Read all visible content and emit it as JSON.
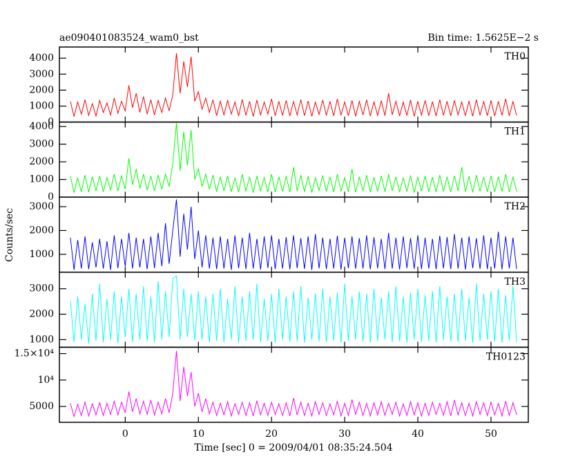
{
  "chart_data": {
    "type": "line",
    "title": "ae090401083524_wam0_bst",
    "subtitle": "Bin time: 1.5625E−2 s",
    "xlabel": "Time [sec] 0 = 2009/04/01 08:35:24.504",
    "ylabel": "Counts/sec",
    "xlim": [
      -9,
      55.1
    ],
    "xticks": [
      0,
      10,
      20,
      30,
      40,
      50
    ],
    "x": [
      -7.5,
      -7,
      -6.5,
      -6,
      -5.5,
      -5,
      -4.5,
      -4,
      -3.5,
      -3,
      -2.5,
      -2,
      -1.5,
      -1,
      -0.5,
      0,
      0.5,
      1,
      1.5,
      2,
      2.5,
      3,
      3.5,
      4,
      4.5,
      5,
      5.5,
      6,
      6.5,
      7,
      7.5,
      8,
      8.5,
      9,
      9.5,
      10,
      10.5,
      11,
      11.5,
      12,
      12.5,
      13,
      13.5,
      14,
      14.5,
      15,
      15.5,
      16,
      16.5,
      17,
      17.5,
      18,
      18.5,
      19,
      19.5,
      20,
      20.5,
      21,
      21.5,
      22,
      22.5,
      23,
      23.5,
      24,
      24.5,
      25,
      25.5,
      26,
      26.5,
      27,
      27.5,
      28,
      28.5,
      29,
      29.5,
      30,
      30.5,
      31,
      31.5,
      32,
      32.5,
      33,
      33.5,
      34,
      34.5,
      35,
      35.5,
      36,
      36.5,
      37,
      37.5,
      38,
      38.5,
      39,
      39.5,
      40,
      40.5,
      41,
      41.5,
      42,
      42.5,
      43,
      43.5,
      44,
      44.5,
      45,
      45.5,
      46,
      46.5,
      47,
      47.5,
      48,
      48.5,
      49,
      49.5,
      50,
      50.5,
      51,
      51.5,
      52,
      52.5,
      53,
      53.5
    ],
    "series": [
      {
        "name": "TH0",
        "color": "#ff0000",
        "ylim": [
          0,
          4700
        ],
        "yticks": [
          0,
          1000,
          2000,
          3000,
          4000
        ],
        "values": [
          1300,
          350,
          1250,
          500,
          1400,
          420,
          1150,
          380,
          1350,
          600,
          1200,
          450,
          1500,
          550,
          1300,
          700,
          2300,
          900,
          1800,
          600,
          1600,
          500,
          1400,
          450,
          1350,
          600,
          1500,
          700,
          1700,
          4300,
          1800,
          3800,
          2200,
          4100,
          1300,
          1900,
          800,
          1500,
          600,
          1400,
          400,
          1300,
          450,
          1350,
          500,
          1250,
          380,
          1420,
          420,
          1300,
          350,
          1380,
          450,
          1250,
          500,
          1450,
          400,
          1300,
          420,
          1350,
          380,
          1280,
          450,
          1400,
          400,
          1320,
          360,
          1250,
          480,
          1380,
          420,
          1300,
          390,
          1450,
          430,
          1260,
          400,
          1350,
          370,
          1300,
          450,
          1400,
          380,
          1270,
          420,
          1340,
          400,
          1800,
          450,
          1300,
          380,
          1250,
          410,
          1380,
          360,
          1300,
          440,
          1350,
          400,
          1280,
          380,
          1400,
          420,
          1300,
          390,
          1350,
          450,
          1260,
          400,
          1320,
          370,
          1400,
          430,
          1280,
          400,
          1350,
          380,
          1300,
          420,
          1450,
          390,
          1300,
          410
        ]
      },
      {
        "name": "TH1",
        "color": "#00ff00",
        "ylim": [
          0,
          4250
        ],
        "yticks": [
          0,
          1000,
          2000,
          3000,
          4000
        ],
        "values": [
          1200,
          250,
          1100,
          300,
          1250,
          280,
          1150,
          350,
          1200,
          300,
          1100,
          400,
          1300,
          350,
          1200,
          450,
          2200,
          700,
          1600,
          500,
          1300,
          400,
          1200,
          350,
          1250,
          450,
          1300,
          600,
          1900,
          4200,
          1500,
          3700,
          1800,
          3800,
          1000,
          1600,
          600,
          1300,
          450,
          1250,
          300,
          1150,
          350,
          1200,
          300,
          1100,
          280,
          1300,
          320,
          1150,
          250,
          1200,
          350,
          1100,
          300,
          1300,
          280,
          1150,
          320,
          1200,
          280,
          1700,
          350,
          1250,
          300,
          1180,
          260,
          1100,
          380,
          1230,
          320,
          1150,
          290,
          1300,
          330,
          1100,
          300,
          1600,
          270,
          1150,
          350,
          1250,
          280,
          1120,
          320,
          1200,
          300,
          1300,
          350,
          1150,
          280,
          1100,
          310,
          1230,
          260,
          1150,
          340,
          1200,
          300,
          1130,
          280,
          1250,
          320,
          1150,
          290,
          1200,
          350,
          1700,
          300,
          1180,
          270,
          1250,
          330,
          1130,
          300,
          1200,
          280,
          1150,
          320,
          1300,
          290,
          1150,
          310
        ]
      },
      {
        "name": "TH2",
        "color": "#0000ff",
        "ylim": [
          250,
          3400
        ],
        "yticks": [
          1000,
          2000,
          3000
        ],
        "values": [
          1700,
          350,
          1600,
          400,
          1750,
          380,
          1500,
          450,
          1650,
          400,
          1550,
          350,
          1800,
          420,
          1650,
          500,
          1900,
          400,
          1700,
          450,
          1650,
          380,
          1750,
          420,
          1900,
          500,
          2300,
          600,
          2000,
          3300,
          900,
          2700,
          1200,
          3000,
          800,
          2000,
          450,
          1800,
          400,
          1700,
          380,
          1750,
          400,
          1650,
          350,
          1800,
          420,
          1700,
          380,
          1900,
          400,
          1650,
          360,
          1750,
          430,
          1800,
          380,
          1650,
          400,
          1720,
          370,
          1800,
          420,
          1680,
          390,
          1750,
          350,
          1850,
          410,
          1700,
          380,
          1650,
          400,
          1780,
          360,
          1700,
          420,
          1750,
          390,
          1680,
          400,
          1800,
          370,
          1720,
          410,
          1650,
          380,
          1900,
          400,
          1700,
          360,
          1750,
          420,
          1680,
          390,
          1800,
          380,
          1700,
          400,
          1650,
          370,
          1780,
          410,
          1720,
          380,
          1850,
          400,
          1700,
          360,
          1750,
          420,
          1680,
          390,
          1800,
          380,
          1700,
          400,
          1950,
          370,
          1750,
          410,
          1700,
          380
        ]
      },
      {
        "name": "TH3",
        "color": "#00ffff",
        "ylim": [
          700,
          3650
        ],
        "yticks": [
          1000,
          2000,
          3000
        ],
        "values": [
          2500,
          900,
          2700,
          1000,
          2400,
          850,
          2800,
          950,
          3200,
          900,
          2600,
          1000,
          2900,
          850,
          2700,
          1100,
          3000,
          900,
          2800,
          1000,
          3100,
          950,
          2700,
          900,
          3300,
          1000,
          2900,
          1100,
          3400,
          3500,
          1000,
          3000,
          1100,
          2800,
          950,
          2900,
          1000,
          2700,
          900,
          2800,
          950,
          3000,
          900,
          2600,
          1000,
          3100,
          880,
          2700,
          950,
          2900,
          1000,
          3200,
          900,
          2600,
          950,
          2800,
          880,
          3000,
          1000,
          2700,
          920,
          2900,
          950,
          3100,
          880,
          2650,
          1000,
          2800,
          930,
          3000,
          900,
          2700,
          960,
          2850,
          880,
          3200,
          950,
          2700,
          1000,
          2900,
          920,
          2800,
          880,
          3000,
          950,
          2650,
          1000,
          2900,
          900,
          3100,
          940,
          2700,
          880,
          2850,
          1000,
          3000,
          920,
          2750,
          950,
          2900,
          880,
          3100,
          1000,
          2700,
          930,
          2800,
          900,
          3000,
          960,
          2650,
          880,
          3200,
          950,
          2800,
          1000,
          2900,
          920,
          3000,
          880,
          2750,
          950,
          3100,
          900
        ]
      },
      {
        "name": "TH0123",
        "color": "#ff00ff",
        "ylim": [
          2000,
          16200
        ],
        "yticks": [
          5000,
          {
            "value": 10000,
            "label": "10⁴"
          },
          {
            "value": 15000,
            "label": "1.5×10⁴"
          }
        ],
        "values": [
          5600,
          3100,
          5400,
          3300,
          5800,
          3200,
          5500,
          3400,
          5700,
          3300,
          5600,
          3500,
          6000,
          3400,
          5800,
          3800,
          7800,
          4000,
          6500,
          3600,
          6000,
          3500,
          6200,
          3400,
          5800,
          3600,
          6500,
          3800,
          7500,
          15500,
          6000,
          12500,
          7000,
          11500,
          5000,
          7500,
          4000,
          6500,
          3600,
          5800,
          3300,
          5600,
          3400,
          5900,
          3200,
          5500,
          3500,
          5800,
          3300,
          5700,
          3200,
          6100,
          3400,
          5600,
          3300,
          5800,
          3500,
          5500,
          3300,
          5700,
          3200,
          6600,
          3400,
          5800,
          3300,
          5600,
          3200,
          5900,
          3500,
          5700,
          3300,
          5500,
          3400,
          6000,
          3200,
          5600,
          3300,
          6300,
          3500,
          5800,
          3300,
          5600,
          3200,
          5700,
          3400,
          5900,
          3300,
          5600,
          3500,
          5800,
          3200,
          5500,
          3300,
          5900,
          3400,
          5700,
          3200,
          5600,
          3300,
          5800,
          3500,
          5600,
          3300,
          5900,
          3200,
          6200,
          3400,
          5700,
          3300,
          5600,
          3200,
          5900,
          3500,
          5700,
          3300,
          5800,
          3400,
          5600,
          3200,
          6000,
          3300,
          5700,
          3400
        ]
      }
    ]
  }
}
